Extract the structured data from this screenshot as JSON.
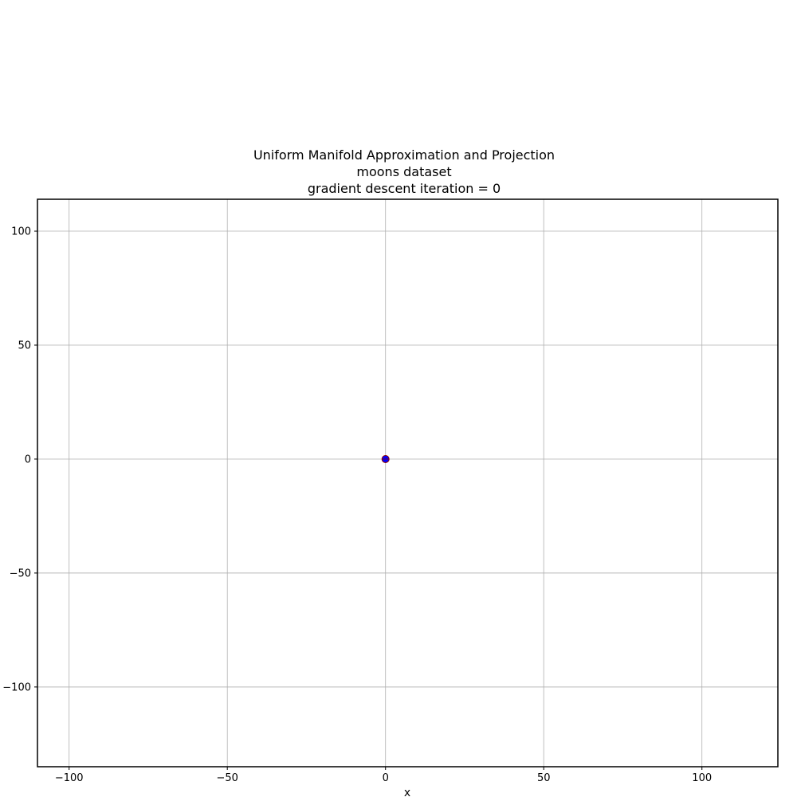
{
  "chart_data": {
    "type": "scatter",
    "title": [
      "Uniform Manifold Approximation and Projection",
      "moons dataset",
      "gradient descent iteration = 0"
    ],
    "xlabel": "x",
    "ylabel": "",
    "xlim": [
      -110,
      124
    ],
    "ylim": [
      -135,
      114
    ],
    "xticks": [
      -100,
      -50,
      0,
      50,
      100
    ],
    "yticks": [
      -100,
      -50,
      0,
      50,
      100
    ],
    "xtick_labels": [
      "−100",
      "−50",
      "0",
      "50",
      "100"
    ],
    "ytick_labels": [
      "−100",
      "−50",
      "0",
      "50",
      "100"
    ],
    "grid": true,
    "series": [
      {
        "color": "#0000ff",
        "edge_color": "#8b0000",
        "points": [
          [
            0,
            0
          ]
        ]
      }
    ]
  }
}
